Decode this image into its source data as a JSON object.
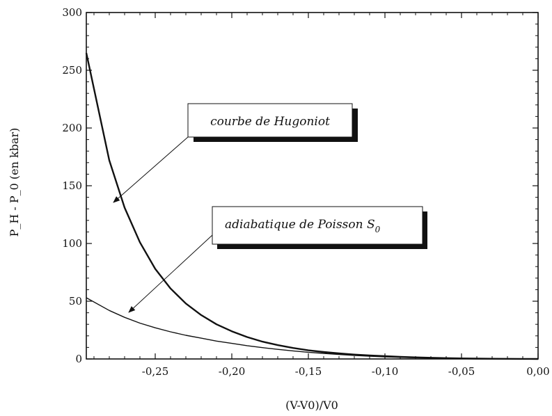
{
  "chart_data": {
    "type": "line",
    "title": "",
    "xlabel": "(V-V0)/V0",
    "ylabel": "P_H - P_0 (en kbar)",
    "xlim": [
      -0.295,
      0.0
    ],
    "ylim": [
      0,
      300
    ],
    "grid": false,
    "x_ticks": [
      -0.25,
      -0.2,
      -0.15,
      -0.1,
      -0.05,
      0.0
    ],
    "x_tick_labels": [
      "-0,25",
      "-0,20",
      "-0,15",
      "-0,10",
      "-0,05",
      "0,00"
    ],
    "y_ticks": [
      0,
      50,
      100,
      150,
      200,
      250,
      300
    ],
    "y_tick_labels": [
      "0",
      "50",
      "100",
      "150",
      "200",
      "250",
      "300"
    ],
    "series": [
      {
        "name": "courbe de Hugoniot",
        "x": [
          -0.295,
          -0.28,
          -0.27,
          -0.26,
          -0.25,
          -0.24,
          -0.23,
          -0.22,
          -0.21,
          -0.2,
          -0.19,
          -0.18,
          -0.17,
          -0.16,
          -0.15,
          -0.14,
          -0.13,
          -0.12,
          -0.11,
          -0.1,
          -0.09,
          -0.08,
          -0.07,
          -0.06,
          -0.05,
          -0.04,
          -0.03,
          -0.02,
          -0.01,
          0.0
        ],
        "y": [
          265,
          172,
          131,
          101,
          78,
          61,
          48,
          38,
          30,
          24,
          19,
          15,
          12,
          9.5,
          7.5,
          6,
          4.8,
          3.8,
          3,
          2.4,
          1.8,
          1.4,
          1,
          0.7,
          0.5,
          0.3,
          0.2,
          0.1,
          0.05,
          0
        ]
      },
      {
        "name": "adiabatique de Poisson S0",
        "x": [
          -0.295,
          -0.28,
          -0.27,
          -0.26,
          -0.25,
          -0.24,
          -0.23,
          -0.22,
          -0.21,
          -0.2,
          -0.19,
          -0.18,
          -0.17,
          -0.16,
          -0.15,
          -0.14,
          -0.13,
          -0.12,
          -0.11,
          -0.1,
          -0.09,
          -0.08,
          -0.07,
          -0.06,
          -0.05,
          -0.04,
          -0.03,
          -0.02,
          -0.01,
          0.0
        ],
        "y": [
          53,
          42,
          36,
          31,
          27,
          23.5,
          20.5,
          18,
          15.5,
          13.5,
          11.5,
          9.8,
          8.3,
          7,
          5.8,
          4.8,
          3.9,
          3.1,
          2.4,
          1.8,
          1.4,
          1,
          0.7,
          0.5,
          0.3,
          0.2,
          0.1,
          0.05,
          0.02,
          0
        ]
      }
    ],
    "annotations": [
      {
        "text": "courbe de Hugoniot",
        "points_to_series": 0
      },
      {
        "text": "adiabatique de Poisson S",
        "subscript": "0",
        "points_to_series": 1
      }
    ]
  }
}
